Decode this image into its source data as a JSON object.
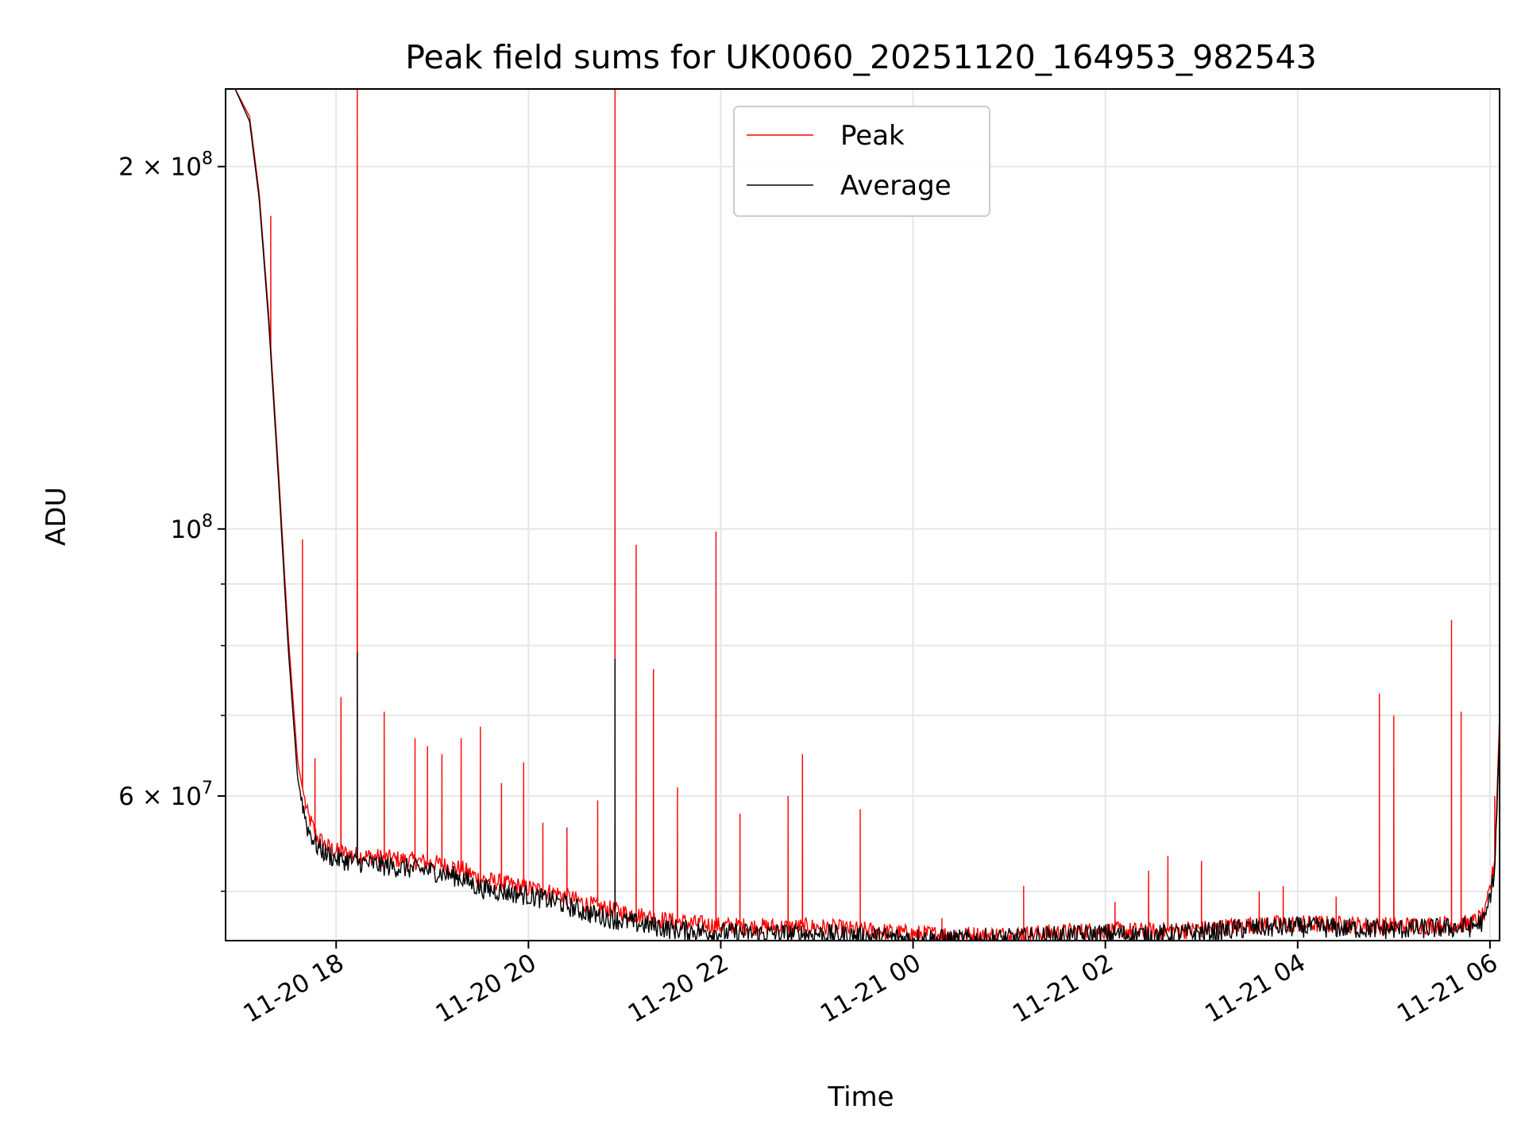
{
  "chart_data": {
    "type": "line",
    "title": "Peak field sums for UK0060_20251120_164953_982543",
    "xlabel": "Time",
    "ylabel": "ADU",
    "yscale": "log",
    "grid": true,
    "legend_position": "upper-center",
    "x_unit": "hours since 2025-11-20 00:00",
    "xlim": [
      16.85,
      30.1
    ],
    "ylim": [
      45500000,
      232000000
    ],
    "x_ticks": [
      {
        "value": 18,
        "label": "11-20 18"
      },
      {
        "value": 20,
        "label": "11-20 20"
      },
      {
        "value": 22,
        "label": "11-20 22"
      },
      {
        "value": 24,
        "label": "11-21 00"
      },
      {
        "value": 26,
        "label": "11-21 02"
      },
      {
        "value": 28,
        "label": "11-21 04"
      },
      {
        "value": 30,
        "label": "11-21 06"
      }
    ],
    "y_major_ticks": [
      {
        "value": 200000000,
        "mantissa": "2",
        "times": "×",
        "base": "10",
        "exponent": "8"
      },
      {
        "value": 100000000,
        "mantissa": "",
        "times": "",
        "base": "10",
        "exponent": "8"
      },
      {
        "value": 60000000,
        "mantissa": "6",
        "times": "×",
        "base": "10",
        "exponent": "7"
      }
    ],
    "y_minor_ticks": [
      50000000,
      70000000,
      80000000,
      90000000
    ],
    "series": [
      {
        "name": "Peak",
        "color": "#ff0000",
        "x": [
          16.95,
          17.1,
          17.2,
          17.3,
          17.4,
          17.5,
          17.6,
          17.7,
          17.8,
          17.9,
          18.0,
          18.2,
          18.5,
          19.0,
          19.3,
          19.5,
          20.0,
          20.3,
          20.6,
          21.0,
          21.5,
          22.0,
          22.5,
          23.0,
          23.5,
          24.0,
          24.5,
          25.0,
          25.5,
          26.0,
          26.5,
          27.0,
          27.5,
          28.0,
          28.5,
          29.0,
          29.5,
          29.8,
          29.95,
          30.05,
          30.1
        ],
        "y": [
          232000000,
          220000000,
          190000000,
          150000000,
          112000000,
          82000000,
          64000000,
          58000000,
          55500000,
          54500000,
          54000000,
          53600000,
          53300000,
          52800000,
          52200000,
          51200000,
          50300000,
          49800000,
          48800000,
          48000000,
          47200000,
          46800000,
          46700000,
          46700000,
          46400000,
          46100000,
          46000000,
          46000000,
          46200000,
          46400000,
          46300000,
          46500000,
          46900000,
          47000000,
          46900000,
          46800000,
          46900000,
          47000000,
          47800000,
          53000000,
          70000000
        ]
      },
      {
        "name": "Average",
        "color": "#000000",
        "x": [
          16.95,
          17.1,
          17.2,
          17.3,
          17.4,
          17.5,
          17.6,
          17.7,
          17.8,
          17.9,
          18.0,
          18.2,
          18.5,
          19.0,
          19.3,
          19.5,
          20.0,
          20.3,
          20.6,
          21.0,
          21.5,
          22.0,
          22.5,
          23.0,
          23.5,
          24.0,
          24.5,
          25.0,
          25.5,
          26.0,
          26.5,
          27.0,
          27.5,
          28.0,
          28.5,
          29.0,
          29.5,
          29.8,
          29.95,
          30.05,
          30.1
        ],
        "y": [
          232000000,
          218000000,
          188000000,
          148000000,
          110000000,
          80000000,
          62000000,
          56500000,
          54500000,
          53700000,
          53200000,
          52900000,
          52500000,
          52000000,
          51300000,
          50300000,
          49600000,
          49000000,
          48000000,
          47200000,
          46500000,
          46200000,
          46100000,
          46100000,
          45900000,
          45700000,
          45600000,
          45700000,
          45900000,
          46100000,
          46000000,
          46200000,
          46600000,
          46700000,
          46600000,
          46500000,
          46600000,
          46700000,
          47300000,
          52000000,
          68000000
        ]
      }
    ],
    "peak_spikes": [
      {
        "x": 17.32,
        "y": 182000000
      },
      {
        "x": 17.65,
        "y": 98000000
      },
      {
        "x": 17.78,
        "y": 64500000
      },
      {
        "x": 18.05,
        "y": 72500000
      },
      {
        "x": 18.22,
        "y": 232000000
      },
      {
        "x": 18.5,
        "y": 70500000
      },
      {
        "x": 18.82,
        "y": 67000000
      },
      {
        "x": 18.95,
        "y": 66000000
      },
      {
        "x": 19.1,
        "y": 65000000
      },
      {
        "x": 19.3,
        "y": 67000000
      },
      {
        "x": 19.5,
        "y": 68500000
      },
      {
        "x": 19.72,
        "y": 61500000
      },
      {
        "x": 19.95,
        "y": 64000000
      },
      {
        "x": 20.15,
        "y": 57000000
      },
      {
        "x": 20.4,
        "y": 56500000
      },
      {
        "x": 20.72,
        "y": 59500000
      },
      {
        "x": 20.9,
        "y": 232000000
      },
      {
        "x": 21.12,
        "y": 97000000
      },
      {
        "x": 21.3,
        "y": 76500000
      },
      {
        "x": 21.55,
        "y": 61000000
      },
      {
        "x": 21.95,
        "y": 99500000
      },
      {
        "x": 22.2,
        "y": 58000000
      },
      {
        "x": 22.7,
        "y": 60000000
      },
      {
        "x": 22.85,
        "y": 65000000
      },
      {
        "x": 23.45,
        "y": 58500000
      },
      {
        "x": 24.3,
        "y": 47500000
      },
      {
        "x": 25.15,
        "y": 50500000
      },
      {
        "x": 26.1,
        "y": 49000000
      },
      {
        "x": 26.45,
        "y": 52000000
      },
      {
        "x": 26.65,
        "y": 53500000
      },
      {
        "x": 27.0,
        "y": 53000000
      },
      {
        "x": 27.6,
        "y": 50000000
      },
      {
        "x": 27.85,
        "y": 50500000
      },
      {
        "x": 28.4,
        "y": 49500000
      },
      {
        "x": 28.85,
        "y": 73000000
      },
      {
        "x": 29.0,
        "y": 70000000
      },
      {
        "x": 29.6,
        "y": 84000000
      },
      {
        "x": 29.7,
        "y": 70500000
      },
      {
        "x": 30.05,
        "y": 60000000
      }
    ]
  }
}
